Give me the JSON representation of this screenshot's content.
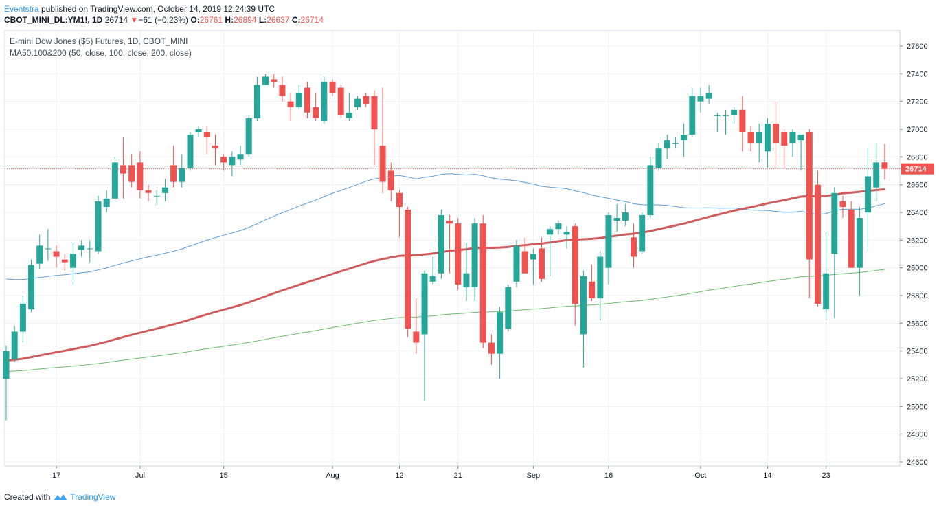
{
  "header": {
    "author": "Eventstra",
    "published_text": " published on TradingView.com, October 14, 2019 12:24:39 UTC",
    "symbol": "CBOT_MINI_DL:YM1!, 1D",
    "last": "26714",
    "change": "−61 (−0.23%)",
    "o_label": "O:",
    "o_value": "26761",
    "h_label": "H:",
    "h_value": "26894",
    "l_label": "L:",
    "l_value": "26637",
    "c_label": "C:",
    "c_value": "26714"
  },
  "legend": {
    "title": "E-mini Dow Jones ($5) Futures, 1D, CBOT_MINI",
    "indicator": "MA50.100&200 (50, close, 100, close, 200, close)"
  },
  "footer": {
    "created_with": "Created with",
    "brand": "TradingView"
  },
  "colors": {
    "up": "#26a69a",
    "down": "#ef5350",
    "ma50": "#5b9cd6",
    "ma100": "#cf5b5b",
    "ma200": "#66bb6a",
    "grid": "#eef0f3",
    "axis": "#787b86"
  },
  "chart_data": {
    "type": "candlestick",
    "title": "E-mini Dow Jones ($5) Futures, 1D, CBOT_MINI",
    "y_ticks": [
      24600,
      24800,
      25000,
      25200,
      25400,
      25600,
      25800,
      26000,
      26200,
      26400,
      26600,
      26800,
      27000,
      27200,
      27400,
      27600
    ],
    "ylim": [
      24560,
      27680
    ],
    "x_ticks": [
      "17",
      "Jul",
      "15",
      "Aug",
      "12",
      "21",
      "Sep",
      "16",
      "Oct",
      "14",
      "23"
    ],
    "x_tick_index": [
      6,
      16,
      26,
      39,
      47,
      54,
      63,
      72,
      83,
      91,
      98
    ],
    "last_price": 26714,
    "grid": true,
    "candles": [
      [
        25200,
        25400,
        24900,
        25440
      ],
      [
        25340,
        25540,
        25320,
        25580
      ],
      [
        25540,
        25740,
        25460,
        25800
      ],
      [
        25700,
        26020,
        25680,
        26060
      ],
      [
        26030,
        26160,
        25990,
        26240
      ],
      [
        26140,
        26140,
        26050,
        26280
      ],
      [
        26120,
        26080,
        26000,
        26160
      ],
      [
        26060,
        26040,
        25980,
        26100
      ],
      [
        26000,
        26100,
        25880,
        26180
      ],
      [
        26130,
        26160,
        26080,
        26200
      ],
      [
        26140,
        26140,
        26040,
        26200
      ],
      [
        26120,
        26480,
        26100,
        26520
      ],
      [
        26440,
        26500,
        26400,
        26560
      ],
      [
        26500,
        26760,
        26500,
        26800
      ],
      [
        26740,
        26680,
        26500,
        26940
      ],
      [
        26740,
        26620,
        26580,
        26820
      ],
      [
        26760,
        26560,
        26500,
        26840
      ],
      [
        26560,
        26540,
        26480,
        26600
      ],
      [
        26520,
        26520,
        26450,
        26560
      ],
      [
        26540,
        26580,
        26480,
        26640
      ],
      [
        26740,
        26620,
        26580,
        26880
      ],
      [
        26620,
        26720,
        26580,
        26820
      ],
      [
        26720,
        26960,
        26700,
        26980
      ],
      [
        26980,
        27000,
        26940,
        27020
      ],
      [
        26980,
        26940,
        26820,
        27020
      ],
      [
        26880,
        26860,
        26740,
        26960
      ],
      [
        26800,
        26760,
        26700,
        26820
      ],
      [
        26740,
        26800,
        26660,
        26840
      ],
      [
        26780,
        26820,
        26740,
        26880
      ],
      [
        26820,
        27080,
        26800,
        27100
      ],
      [
        27080,
        27320,
        27060,
        27380
      ],
      [
        27320,
        27380,
        27320,
        27400
      ],
      [
        27360,
        27340,
        27300,
        27400
      ],
      [
        27320,
        27240,
        27200,
        27380
      ],
      [
        27200,
        27160,
        27060,
        27260
      ],
      [
        27160,
        27260,
        27140,
        27320
      ],
      [
        27300,
        27120,
        27080,
        27340
      ],
      [
        27160,
        27080,
        27060,
        27260
      ],
      [
        27060,
        27340,
        27040,
        27380
      ],
      [
        27340,
        27260,
        27240,
        27360
      ],
      [
        27300,
        27100,
        27080,
        27320
      ],
      [
        27080,
        27120,
        27060,
        27260
      ],
      [
        27160,
        27220,
        27140,
        27240
      ],
      [
        27240,
        27180,
        27160,
        27260
      ],
      [
        27240,
        27000,
        26740,
        27280
      ],
      [
        26880,
        26620,
        26540,
        27300
      ],
      [
        26700,
        26560,
        26480,
        26760
      ],
      [
        26540,
        26440,
        26220,
        26560
      ],
      [
        26420,
        25560,
        25500,
        26440
      ],
      [
        25540,
        25460,
        25380,
        25780
      ],
      [
        25520,
        25960,
        25040,
        25980
      ],
      [
        25900,
        25940,
        25880,
        26080
      ],
      [
        25960,
        26380,
        25920,
        26420
      ],
      [
        26340,
        26320,
        25960,
        26380
      ],
      [
        26320,
        25880,
        25840,
        26360
      ],
      [
        25860,
        25960,
        25760,
        26180
      ],
      [
        25860,
        26320,
        25760,
        26360
      ],
      [
        26320,
        25460,
        25420,
        26380
      ],
      [
        25460,
        25380,
        25300,
        25520
      ],
      [
        25380,
        25680,
        25200,
        25720
      ],
      [
        25560,
        25860,
        25540,
        25880
      ],
      [
        25900,
        26160,
        25860,
        26200
      ],
      [
        26120,
        25960,
        25960,
        26220
      ],
      [
        26060,
        26100,
        25880,
        26140
      ],
      [
        26140,
        25920,
        25900,
        26220
      ],
      [
        26240,
        26280,
        25940,
        26300
      ],
      [
        26280,
        26320,
        26240,
        26340
      ],
      [
        26240,
        26260,
        26140,
        26300
      ],
      [
        26300,
        25740,
        25580,
        26320
      ],
      [
        25520,
        25940,
        25280,
        25980
      ],
      [
        25900,
        25780,
        25760,
        26020
      ],
      [
        25780,
        26080,
        25620,
        26120
      ],
      [
        26000,
        26380,
        25880,
        26400
      ],
      [
        26340,
        26360,
        26260,
        26460
      ],
      [
        26340,
        26400,
        26300,
        26460
      ],
      [
        26220,
        26080,
        26000,
        26320
      ],
      [
        26120,
        26380,
        26100,
        26400
      ],
      [
        26380,
        26740,
        26360,
        26800
      ],
      [
        26720,
        26860,
        26700,
        26900
      ],
      [
        26860,
        26920,
        26780,
        26960
      ],
      [
        26900,
        26900,
        26860,
        26940
      ],
      [
        26920,
        26960,
        26800,
        27040
      ],
      [
        26960,
        27240,
        26940,
        27300
      ],
      [
        27200,
        27240,
        27120,
        27300
      ],
      [
        27220,
        27260,
        27180,
        27320
      ],
      [
        27100,
        27100,
        26980,
        27120
      ],
      [
        27100,
        27100,
        26960,
        27140
      ],
      [
        27100,
        27140,
        27040,
        27160
      ],
      [
        27140,
        26980,
        26840,
        27240
      ],
      [
        26980,
        26900,
        26840,
        27020
      ],
      [
        26900,
        26980,
        26760,
        27040
      ],
      [
        26840,
        27040,
        26720,
        27080
      ],
      [
        27040,
        26900,
        26720,
        27200
      ],
      [
        26980,
        26880,
        26720,
        27000
      ],
      [
        26900,
        26980,
        26800,
        27000
      ],
      [
        26920,
        26960,
        26700,
        26960
      ],
      [
        26980,
        26060,
        25780,
        27000
      ],
      [
        26600,
        25740,
        25720,
        26700
      ],
      [
        25700,
        25960,
        25620,
        26260
      ],
      [
        26100,
        26540,
        25640,
        26580
      ],
      [
        26480,
        26440,
        26360,
        26520
      ],
      [
        26420,
        26000,
        26000,
        26480
      ],
      [
        26000,
        26360,
        25800,
        26440
      ],
      [
        26400,
        26660,
        26120,
        26860
      ],
      [
        26580,
        26760,
        26480,
        26900
      ],
      [
        26761,
        26714,
        26637,
        26894
      ]
    ]
  }
}
